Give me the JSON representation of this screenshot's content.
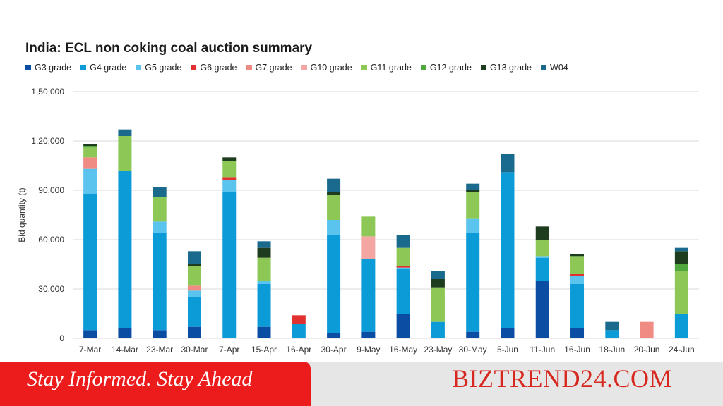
{
  "chart_data": {
    "type": "bar",
    "stacked": true,
    "title": "India: ECL non coking coal auction summary",
    "ylabel": "Bid quantity (t)",
    "xlabel": "",
    "ylim": [
      0,
      150000
    ],
    "yticks": [
      "0",
      "30,000",
      "60,000",
      "90,000",
      "1,20,000",
      "1,50,000"
    ],
    "ytick_values": [
      0,
      30000,
      60000,
      90000,
      120000,
      150000
    ],
    "grid": true,
    "legend_position": "top",
    "categories": [
      "7-Mar",
      "14-Mar",
      "23-Mar",
      "30-Mar",
      "7-Apr",
      "15-Apr",
      "16-Apr",
      "30-Apr",
      "9-May",
      "16-May",
      "23-May",
      "30-May",
      "5-Jun",
      "11-Jun",
      "16-Jun",
      "18-Jun",
      "20-Jun",
      "24-Jun"
    ],
    "series": [
      {
        "name": "G3 grade",
        "color": "#0b4da2",
        "values": [
          5000,
          6000,
          5000,
          7000,
          0,
          7000,
          0,
          3000,
          4000,
          15000,
          0,
          4000,
          6000,
          35000,
          6000,
          0,
          0,
          0
        ]
      },
      {
        "name": "G4 grade",
        "color": "#0b9bd7",
        "values": [
          83000,
          96000,
          59000,
          18000,
          89000,
          26000,
          9000,
          60000,
          44000,
          27000,
          10000,
          60000,
          95000,
          14000,
          27000,
          5000,
          0,
          15000
        ]
      },
      {
        "name": "G5 grade",
        "color": "#5bc4ee",
        "values": [
          15000,
          0,
          7000,
          4000,
          7000,
          2000,
          0,
          9000,
          0,
          1000,
          0,
          9000,
          0,
          1000,
          5000,
          0,
          0,
          0
        ]
      },
      {
        "name": "G6 grade",
        "color": "#e0302f",
        "values": [
          0,
          0,
          0,
          0,
          2000,
          0,
          5000,
          0,
          0,
          1000,
          0,
          0,
          0,
          0,
          1000,
          0,
          0,
          0
        ]
      },
      {
        "name": "G7 grade",
        "color": "#f08b84",
        "values": [
          7000,
          0,
          0,
          3000,
          0,
          0,
          0,
          0,
          0,
          0,
          0,
          0,
          0,
          0,
          0,
          0,
          10000,
          0
        ]
      },
      {
        "name": "G10 grade",
        "color": "#f4a6a2",
        "values": [
          0,
          0,
          0,
          0,
          0,
          0,
          0,
          0,
          14000,
          0,
          0,
          0,
          0,
          0,
          0,
          0,
          0,
          0
        ]
      },
      {
        "name": "G11 grade",
        "color": "#8dc857",
        "values": [
          6000,
          21000,
          15000,
          12000,
          10000,
          14000,
          0,
          15000,
          12000,
          11000,
          21000,
          16000,
          0,
          10000,
          11000,
          0,
          0,
          26000
        ]
      },
      {
        "name": "G12 grade",
        "color": "#4fa83d",
        "values": [
          1000,
          0,
          0,
          0,
          0,
          0,
          0,
          0,
          0,
          0,
          0,
          0,
          0,
          0,
          0,
          0,
          0,
          4000
        ]
      },
      {
        "name": "G13 grade",
        "color": "#1e3d1e",
        "values": [
          1000,
          0,
          0,
          1000,
          2000,
          6000,
          0,
          2000,
          0,
          0,
          5000,
          1000,
          0,
          8000,
          1000,
          0,
          0,
          8000
        ]
      },
      {
        "name": "W04",
        "color": "#1a6a8e",
        "values": [
          0,
          4000,
          6000,
          8000,
          0,
          4000,
          0,
          8000,
          0,
          8000,
          5000,
          4000,
          11000,
          0,
          0,
          5000,
          0,
          2000
        ]
      }
    ]
  },
  "footer": {
    "tagline": "Stay Informed. Stay Ahead",
    "brand": "BIZTREND24.COM",
    "tagline_bg": "#ed1c1c",
    "brand_color": "#d7281f"
  }
}
